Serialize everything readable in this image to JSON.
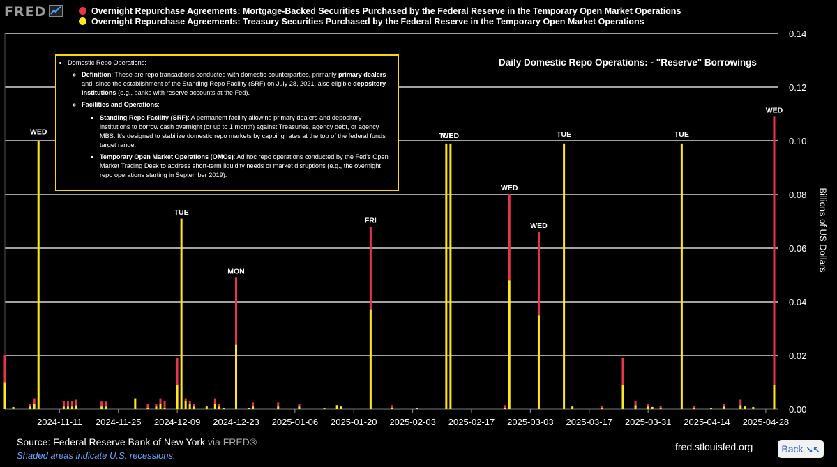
{
  "header": {
    "logo_text": "FRED",
    "logo_icon": "line-chart-icon",
    "legend": [
      {
        "label": "Overnight Repurchase Agreements: Mortgage-Backed Securities Purchased by the Federal Reserve in the Temporary Open Market Operations",
        "color": "#e8354a"
      },
      {
        "label": "Overnight Repurchase Agreements: Treasury Securities Purchased by the Federal Reserve in the Temporary Open Market Operations",
        "color": "#ffe81a"
      }
    ]
  },
  "annotation": {
    "heading": "Domestic Repo Operations:",
    "definition_label": "Definition",
    "definition_text_1": ": These are repo transactions conducted with domestic counterparties, primarily ",
    "definition_bold_1": "primary dealers",
    "definition_text_2": " and, since the establishment of the Standing Repo Facility (SRF) on July 28, 2021, also eligible ",
    "definition_bold_2": "depository institutions",
    "definition_text_3": " (e.g., banks with reserve accounts at the Fed).",
    "facilities_heading": "Facilities and Operations",
    "facilities_colon": ":",
    "srf_label": "Standing Repo Facility (SRF)",
    "srf_text": ": A permanent facility allowing primary dealers and depository institutions to borrow cash overnight (or up to 1 month) against Treasuries, agency debt, or agency MBS. It's designed to stabilize domestic repo markets by capping rates at the top of the federal funds target range.",
    "omo_label": "Temporary Open Market Operations (OMOs)",
    "omo_text": ": Ad hoc repo operations conducted by the Fed's Open Market Trading Desk to address short-term liquidity needs or market disruptions (e.g., the overnight repo operations starting in September 2019)."
  },
  "chart_title": "Daily Domestic Repo Operations:  - \"Reserve\" Borrowings",
  "ylabel": "Billions of US Dollars",
  "footer": {
    "source": "Source: Federal Reserve Bank of New York",
    "via": " via FRED®",
    "recessions": "Shaded areas indicate U.S. recessions.",
    "site": "fred.stlouisfed.org",
    "back_label": "Back",
    "back_icon": "shrink-arrows-icon"
  },
  "chart_data": {
    "type": "bar",
    "stacked": true,
    "x_axis": "date",
    "x_range": [
      "2024-10-29",
      "2025-05-01"
    ],
    "ylim": [
      0,
      0.14
    ],
    "yticks": [
      0,
      0.02,
      0.04,
      0.06,
      0.08,
      0.1,
      0.12,
      0.14
    ],
    "ytick_labels": [
      "0.00",
      "0.02",
      "0.04",
      "0.06",
      "0.08",
      "0.10",
      "0.12",
      "0.14"
    ],
    "xticks": [
      "2024-11-11",
      "2024-11-25",
      "2024-12-09",
      "2024-12-23",
      "2025-01-06",
      "2025-01-20",
      "2025-02-03",
      "2025-02-17",
      "2025-03-03",
      "2025-03-17",
      "2025-03-31",
      "2025-04-14",
      "2025-04-28"
    ],
    "grid": true,
    "legend_position": "top",
    "series": [
      {
        "name": "Overnight Repurchase Agreements: Treasury Securities Purchased by the Federal Reserve in the Temporary Open Market Operations",
        "color": "#ffe81a"
      },
      {
        "name": "Overnight Repurchase Agreements: Mortgage-Backed Securities Purchased by the Federal Reserve in the Temporary Open Market Operations",
        "color": "#e8354a"
      }
    ],
    "points": [
      {
        "date": "2024-10-29",
        "treasury": 0.01,
        "mbs": 0.01
      },
      {
        "date": "2024-10-31",
        "treasury": 0.0008,
        "mbs": 0.0
      },
      {
        "date": "2024-11-04",
        "treasury": 0.001,
        "mbs": 0.001
      },
      {
        "date": "2024-11-05",
        "treasury": 0.002,
        "mbs": 0.002
      },
      {
        "date": "2024-11-06",
        "treasury": 0.1,
        "mbs": 0.0
      },
      {
        "date": "2024-11-12",
        "treasury": 0.001,
        "mbs": 0.002
      },
      {
        "date": "2024-11-13",
        "treasury": 0.001,
        "mbs": 0.002
      },
      {
        "date": "2024-11-14",
        "treasury": 0.001,
        "mbs": 0.002
      },
      {
        "date": "2024-11-15",
        "treasury": 0.0015,
        "mbs": 0.002
      },
      {
        "date": "2024-11-21",
        "treasury": 0.001,
        "mbs": 0.0018
      },
      {
        "date": "2024-11-22",
        "treasury": 0.001,
        "mbs": 0.0018
      },
      {
        "date": "2024-11-29",
        "treasury": 0.004,
        "mbs": 0.0
      },
      {
        "date": "2024-12-02",
        "treasury": 0.0006,
        "mbs": 0.0012
      },
      {
        "date": "2024-12-04",
        "treasury": 0.001,
        "mbs": 0.001
      },
      {
        "date": "2024-12-05",
        "treasury": 0.002,
        "mbs": 0.002
      },
      {
        "date": "2024-12-06",
        "treasury": 0.0005,
        "mbs": 0.0025
      },
      {
        "date": "2024-12-09",
        "treasury": 0.009,
        "mbs": 0.01
      },
      {
        "date": "2024-12-10",
        "treasury": 0.071,
        "mbs": 0.0
      },
      {
        "date": "2024-12-11",
        "treasury": 0.003,
        "mbs": 0.001
      },
      {
        "date": "2024-12-12",
        "treasury": 0.002,
        "mbs": 0.001
      },
      {
        "date": "2024-12-13",
        "treasury": 0.001,
        "mbs": 0.001
      },
      {
        "date": "2024-12-16",
        "treasury": 0.001,
        "mbs": 0.0
      },
      {
        "date": "2024-12-18",
        "treasury": 0.002,
        "mbs": 0.002
      },
      {
        "date": "2024-12-19",
        "treasury": 0.001,
        "mbs": 0.001
      },
      {
        "date": "2024-12-20",
        "treasury": 0.0005,
        "mbs": 0.0
      },
      {
        "date": "2024-12-23",
        "treasury": 0.024,
        "mbs": 0.025
      },
      {
        "date": "2024-12-26",
        "treasury": 0.0005,
        "mbs": 0.0
      },
      {
        "date": "2024-12-27",
        "treasury": 0.001,
        "mbs": 0.0015
      },
      {
        "date": "2025-01-02",
        "treasury": 0.001,
        "mbs": 0.0015
      },
      {
        "date": "2025-01-07",
        "treasury": 0.001,
        "mbs": 0.001
      },
      {
        "date": "2025-01-13",
        "treasury": 0.0005,
        "mbs": 0.0
      },
      {
        "date": "2025-01-16",
        "treasury": 0.0015,
        "mbs": 0.0
      },
      {
        "date": "2025-01-17",
        "treasury": 0.001,
        "mbs": 0.0
      },
      {
        "date": "2025-01-24",
        "treasury": 0.037,
        "mbs": 0.031
      },
      {
        "date": "2025-01-29",
        "treasury": 0.0005,
        "mbs": 0.001
      },
      {
        "date": "2025-02-04",
        "treasury": 0.0005,
        "mbs": 0.0
      },
      {
        "date": "2025-02-11",
        "treasury": 0.099,
        "mbs": 0.0
      },
      {
        "date": "2025-02-12",
        "treasury": 0.099,
        "mbs": 0.0
      },
      {
        "date": "2025-02-25",
        "treasury": 0.0005,
        "mbs": 0.001
      },
      {
        "date": "2025-02-26",
        "treasury": 0.048,
        "mbs": 0.032
      },
      {
        "date": "2025-03-05",
        "treasury": 0.035,
        "mbs": 0.031
      },
      {
        "date": "2025-03-11",
        "treasury": 0.099,
        "mbs": 0.0
      },
      {
        "date": "2025-03-13",
        "treasury": 0.001,
        "mbs": 0.0
      },
      {
        "date": "2025-03-20",
        "treasury": 0.0005,
        "mbs": 0.0008
      },
      {
        "date": "2025-03-25",
        "treasury": 0.009,
        "mbs": 0.01
      },
      {
        "date": "2025-03-28",
        "treasury": 0.0015,
        "mbs": 0.0015
      },
      {
        "date": "2025-03-31",
        "treasury": 0.001,
        "mbs": 0.001
      },
      {
        "date": "2025-04-01",
        "treasury": 0.0008,
        "mbs": 0.0
      },
      {
        "date": "2025-04-03",
        "treasury": 0.0005,
        "mbs": 0.0008
      },
      {
        "date": "2025-04-08",
        "treasury": 0.099,
        "mbs": 0.0
      },
      {
        "date": "2025-04-11",
        "treasury": 0.0005,
        "mbs": 0.0008
      },
      {
        "date": "2025-04-15",
        "treasury": 0.0005,
        "mbs": 0.0
      },
      {
        "date": "2025-04-18",
        "treasury": 0.001,
        "mbs": 0.001
      },
      {
        "date": "2025-04-22",
        "treasury": 0.0015,
        "mbs": 0.002
      },
      {
        "date": "2025-04-23",
        "treasury": 0.001,
        "mbs": 0.0
      },
      {
        "date": "2025-04-25",
        "treasury": 0.0008,
        "mbs": 0.0
      },
      {
        "date": "2025-04-30",
        "treasury": 0.009,
        "mbs": 0.1
      }
    ],
    "annotations": [
      {
        "text": "WED",
        "date": "2024-11-06",
        "y": 0.1025
      },
      {
        "text": "TUE",
        "date": "2024-12-10",
        "y": 0.0725
      },
      {
        "text": "MON",
        "date": "2024-12-23",
        "y": 0.0505
      },
      {
        "text": "FRI",
        "date": "2025-01-24",
        "y": 0.0695
      },
      {
        "text": "TUE",
        "date": "2025-02-11",
        "y": 0.101
      },
      {
        "text": "WED",
        "date": "2025-02-12",
        "y": 0.101
      },
      {
        "text": "WED",
        "date": "2025-02-26",
        "y": 0.0815
      },
      {
        "text": "WED",
        "date": "2025-03-05",
        "y": 0.0675
      },
      {
        "text": "TUE",
        "date": "2025-03-11",
        "y": 0.1015
      },
      {
        "text": "TUE",
        "date": "2025-04-08",
        "y": 0.1015
      },
      {
        "text": "WED",
        "date": "2025-04-30",
        "y": 0.1105
      }
    ]
  }
}
